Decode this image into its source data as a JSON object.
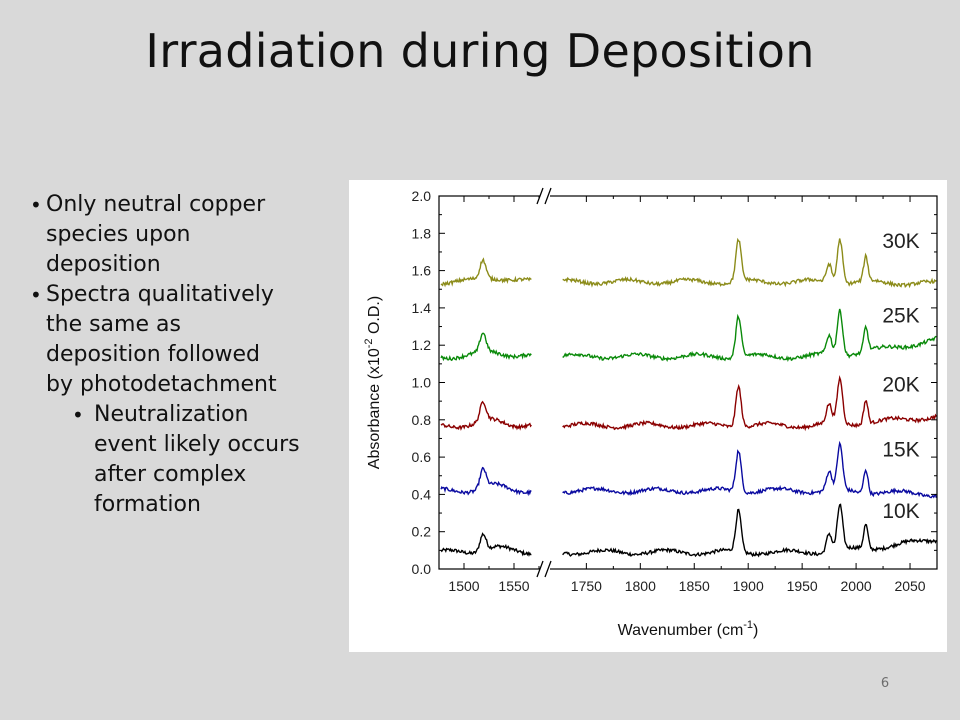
{
  "slide": {
    "title": "Irradiation during Deposition",
    "page_number": "6"
  },
  "bullets": [
    {
      "text": "Only neutral copper species upon deposition",
      "lines": [
        "Only neutral copper",
        "species upon",
        "deposition"
      ]
    },
    {
      "text": "Spectra qualitatively the same as deposition followed by photodetachment",
      "lines": [
        "Spectra qualitatively",
        "the same as",
        "deposition followed",
        "by photodetachment"
      ]
    }
  ],
  "sub_bullets": [
    {
      "text": "Neutralization event likely occurs after complex formation",
      "lines": [
        "Neutralization",
        "event likely occurs",
        "after complex",
        "formation"
      ]
    }
  ],
  "chart_data": {
    "type": "line",
    "title": "",
    "xlabel": "Wavenumber (cm-1)",
    "ylabel": "Absorbance (x10-2 O.D.)",
    "xlabel_parts": {
      "base": "Wavenumber (cm",
      "sup": "-1",
      "tail": ")"
    },
    "ylabel_parts": {
      "base": "Absorbance (x10",
      "sup": "-2",
      "tail": " O.D.)"
    },
    "ylim": [
      0.0,
      2.0
    ],
    "y_ticks": [
      "0.0",
      "0.2",
      "0.4",
      "0.6",
      "0.8",
      "1.0",
      "1.2",
      "1.4",
      "1.6",
      "1.8",
      "2.0"
    ],
    "x_ticks": [
      "1500",
      "1550",
      "1750",
      "1800",
      "1850",
      "1900",
      "1950",
      "2000",
      "2050"
    ],
    "x_axis_break": {
      "from": 1575,
      "to": 1720
    },
    "x_segments": [
      [
        1475,
        1575
      ],
      [
        1720,
        2075
      ]
    ],
    "grid": false,
    "legend": "inline-right",
    "peaks": [
      {
        "x": 1519,
        "h": 0.1,
        "w": 3
      },
      {
        "x": 1891,
        "h": 0.22,
        "w": 2.5
      },
      {
        "x": 1975,
        "h": 0.1,
        "w": 2.5
      },
      {
        "x": 1985,
        "h": 0.24,
        "w": 2.5
      },
      {
        "x": 2009,
        "h": 0.13,
        "w": 2
      }
    ],
    "series": [
      {
        "name": "10K",
        "color": "#000000",
        "baseline": 0.09,
        "end": 0.16
      },
      {
        "name": "15K",
        "color": "#0a0aa0",
        "baseline": 0.42,
        "end": 0.4
      },
      {
        "name": "20K",
        "color": "#8b0000",
        "baseline": 0.77,
        "end": 0.82
      },
      {
        "name": "25K",
        "color": "#0a8a0a",
        "baseline": 1.14,
        "end": 1.23
      },
      {
        "name": "30K",
        "color": "#8c8c1a",
        "baseline": 1.54,
        "end": 1.53
      }
    ]
  }
}
